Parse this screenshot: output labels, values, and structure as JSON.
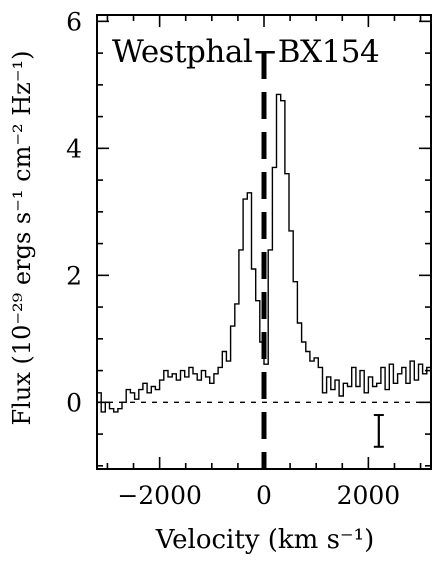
{
  "chart_data": {
    "type": "line",
    "title": "Westphal−BX154",
    "xlabel": "Velocity (km s⁻¹)",
    "ylabel": "Flux (10⁻²⁹ ergs s⁻¹ cm⁻² Hz⁻¹)",
    "xlim": [
      -3200,
      3200
    ],
    "ylim": [
      -1.05,
      6.1
    ],
    "x_ticks": [
      {
        "value": -2000,
        "label": "−2000"
      },
      {
        "value": 0,
        "label": "0"
      },
      {
        "value": 2000,
        "label": "2000"
      }
    ],
    "y_ticks": [
      {
        "value": 0,
        "label": "0"
      },
      {
        "value": 2,
        "label": "2"
      },
      {
        "value": 4,
        "label": "4"
      },
      {
        "value": 6,
        "label": "6"
      }
    ],
    "zero_line": 0,
    "systemic_velocity": 0,
    "error_bar": {
      "x": 2200,
      "y_low": -0.7,
      "y_high": -0.2
    },
    "series": [
      {
        "style": "histogram",
        "bin_width": 80,
        "x": [
          -3200,
          -3120,
          -3040,
          -2960,
          -2880,
          -2800,
          -2720,
          -2640,
          -2560,
          -2480,
          -2400,
          -2320,
          -2240,
          -2160,
          -2080,
          -2000,
          -1920,
          -1840,
          -1760,
          -1680,
          -1600,
          -1520,
          -1440,
          -1360,
          -1280,
          -1200,
          -1120,
          -1040,
          -960,
          -880,
          -800,
          -720,
          -640,
          -560,
          -480,
          -400,
          -320,
          -240,
          -160,
          -80,
          0,
          80,
          160,
          240,
          320,
          400,
          480,
          560,
          640,
          720,
          800,
          880,
          960,
          1040,
          1120,
          1200,
          1280,
          1360,
          1440,
          1520,
          1600,
          1680,
          1760,
          1840,
          1920,
          2000,
          2080,
          2160,
          2240,
          2320,
          2400,
          2480,
          2560,
          2640,
          2720,
          2800,
          2880,
          2960,
          3040,
          3120
        ],
        "y": [
          0.15,
          -0.15,
          0.0,
          -0.1,
          -0.15,
          -0.1,
          0.0,
          0.2,
          0.15,
          0.05,
          0.2,
          0.3,
          0.15,
          0.25,
          0.2,
          0.35,
          0.5,
          0.4,
          0.45,
          0.35,
          0.5,
          0.4,
          0.55,
          0.45,
          0.35,
          0.5,
          0.4,
          0.3,
          0.45,
          0.55,
          0.8,
          0.65,
          1.2,
          1.55,
          2.4,
          3.2,
          3.3,
          2.1,
          1.6,
          0.95,
          0.6,
          2.4,
          3.7,
          4.85,
          4.75,
          3.6,
          2.7,
          1.9,
          1.25,
          0.95,
          0.8,
          0.65,
          0.7,
          0.55,
          0.15,
          0.4,
          0.2,
          0.35,
          0.1,
          0.3,
          0.25,
          0.55,
          0.25,
          0.5,
          0.15,
          0.4,
          0.25,
          0.3,
          0.55,
          0.2,
          0.6,
          0.3,
          0.45,
          0.55,
          0.3,
          0.65,
          0.35,
          0.6,
          0.45,
          0.55
        ]
      }
    ]
  }
}
